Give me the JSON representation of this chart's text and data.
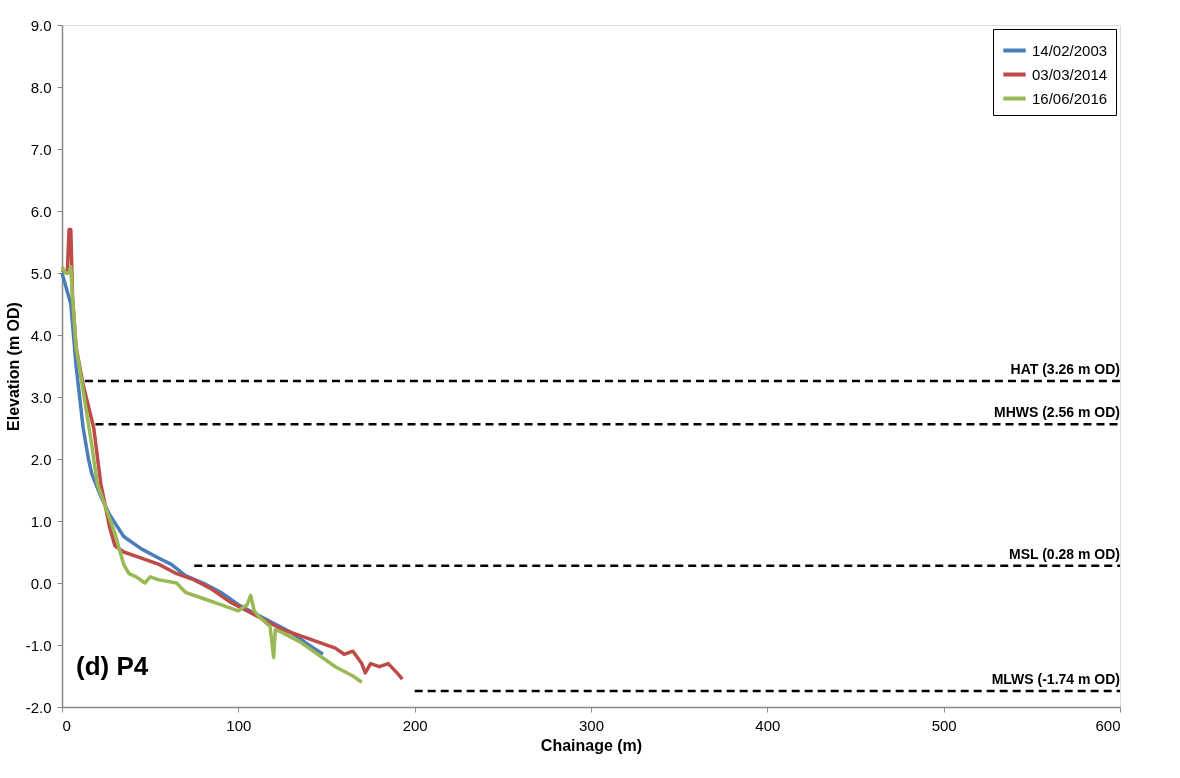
{
  "chart_data": {
    "type": "line",
    "xlabel": "Chainage (m)",
    "ylabel": "Elevation (m OD)",
    "xlim": [
      0,
      600
    ],
    "xticks": [
      0,
      100,
      200,
      300,
      400,
      500,
      600
    ],
    "ylim": [
      -2,
      9
    ],
    "yticks": [
      {
        "value": -2,
        "label": "-2.0"
      },
      {
        "value": -1,
        "label": "-1.0"
      },
      {
        "value": 0,
        "label": "0.0"
      },
      {
        "value": 1,
        "label": "1.0"
      },
      {
        "value": 2,
        "label": "2.0"
      },
      {
        "value": 3,
        "label": "3.0"
      },
      {
        "value": 4,
        "label": "4.0"
      },
      {
        "value": 5,
        "label": "5.0"
      },
      {
        "value": 6,
        "label": "6.0"
      },
      {
        "value": 7,
        "label": "7.0"
      },
      {
        "value": 8,
        "label": "8.0"
      },
      {
        "value": 9,
        "label": "9.0"
      }
    ],
    "grid": false,
    "legend": "top right",
    "marker": "none",
    "series": [
      {
        "name": "14/02/2003",
        "color": "#4a7ebb",
        "line_style": "solid",
        "x": [
          0,
          5,
          8,
          12,
          15,
          17,
          22,
          27,
          35,
          45,
          55,
          62,
          70,
          80,
          90,
          100,
          110,
          120,
          130,
          140,
          148
        ],
        "values": [
          5.0,
          4.5,
          3.5,
          2.5,
          2.0,
          1.75,
          1.4,
          1.1,
          0.75,
          0.55,
          0.4,
          0.3,
          0.12,
          0.0,
          -0.15,
          -0.35,
          -0.5,
          -0.65,
          -0.8,
          -1.0,
          -1.15
        ]
      },
      {
        "name": "03/03/2014",
        "color": "#be4b48",
        "line_style": "solid",
        "x": [
          0,
          3,
          4,
          5,
          6,
          8,
          12,
          18,
          22,
          27,
          30,
          35,
          45,
          55,
          65,
          75,
          85,
          95,
          105,
          115,
          125,
          135,
          145,
          155,
          160,
          165,
          170,
          172,
          175,
          180,
          185,
          190,
          193
        ],
        "values": [
          5.05,
          5.0,
          5.7,
          5.7,
          4.6,
          3.8,
          3.2,
          2.5,
          1.6,
          0.9,
          0.6,
          0.5,
          0.4,
          0.3,
          0.15,
          0.05,
          -0.1,
          -0.3,
          -0.45,
          -0.6,
          -0.75,
          -0.85,
          -0.95,
          -1.05,
          -1.15,
          -1.1,
          -1.3,
          -1.45,
          -1.3,
          -1.35,
          -1.3,
          -1.45,
          -1.55
        ]
      },
      {
        "name": "16/06/2016",
        "color": "#98b954",
        "line_style": "solid",
        "x": [
          0,
          2,
          4,
          5,
          6,
          8,
          12,
          17,
          20,
          25,
          30,
          35,
          38,
          42,
          47,
          50,
          55,
          65,
          70,
          80,
          90,
          100,
          105,
          107,
          109,
          112,
          118,
          120,
          121,
          125,
          135,
          145,
          155,
          165,
          170
        ],
        "values": [
          5.1,
          5.0,
          5.0,
          5.1,
          4.6,
          3.8,
          3.1,
          2.2,
          1.6,
          1.2,
          0.8,
          0.3,
          0.15,
          0.1,
          0.0,
          0.1,
          0.05,
          0.0,
          -0.15,
          -0.25,
          -0.35,
          -0.45,
          -0.35,
          -0.2,
          -0.45,
          -0.55,
          -0.7,
          -1.2,
          -0.75,
          -0.8,
          -0.95,
          -1.15,
          -1.35,
          -1.5,
          -1.6
        ]
      },
      {
        "color": "#000000",
        "line_style": "dashed",
        "x": [
          13,
          600
        ],
        "values": [
          3.26,
          3.26
        ]
      },
      {
        "color": "#000000",
        "line_style": "dashed",
        "x": [
          19,
          600
        ],
        "values": [
          2.56,
          2.56
        ]
      },
      {
        "color": "#000000",
        "line_style": "dashed",
        "x": [
          75,
          600
        ],
        "values": [
          0.28,
          0.28
        ]
      },
      {
        "color": "#000000",
        "line_style": "dashed",
        "x": [
          200,
          600
        ],
        "values": [
          -1.74,
          -1.74
        ]
      }
    ],
    "annotations": [
      {
        "text": "HAT (3.26 m OD)",
        "y": 3.26
      },
      {
        "text": "MHWS (2.56 m OD)",
        "y": 2.56
      },
      {
        "text": "MSL (0.28 m OD)",
        "y": 0.28
      },
      {
        "text": "MLWS (-1.74 m OD)",
        "y": -1.74
      },
      "(d) P4"
    ]
  }
}
